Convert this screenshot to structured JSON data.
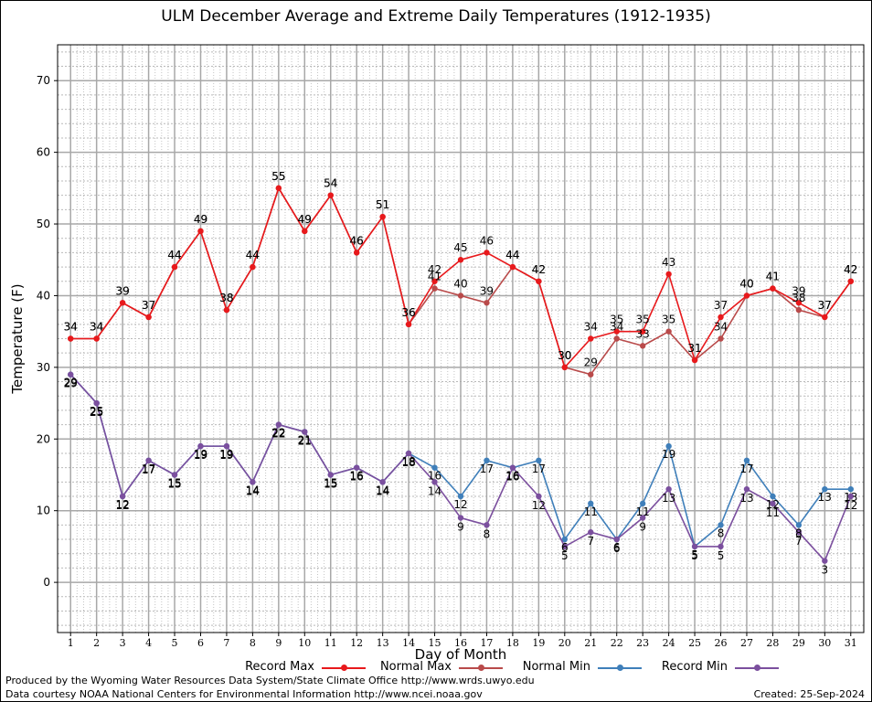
{
  "title": "ULM December Average and Extreme Daily Temperatures (1912-1935)",
  "footer": {
    "produced_by": "Produced by the Wyoming Water Resources Data System/State Climate Office http://www.wrds.uwyo.edu",
    "courtesy": "Data courtesy NOAA National Centers for Environmental Information http://www.ncei.noaa.gov",
    "created": "Created: 25-Sep-2024"
  },
  "chart_data": {
    "type": "line",
    "title": "ULM December Average and Extreme Daily Temperatures (1912-1935)",
    "xlabel": "Day of Month",
    "ylabel": "Temperature (F)",
    "xlim": [
      0.5,
      31.5
    ],
    "ylim": [
      -7,
      75
    ],
    "yticks": [
      0,
      10,
      20,
      30,
      40,
      50,
      60,
      70
    ],
    "x": [
      1,
      2,
      3,
      4,
      5,
      6,
      7,
      8,
      9,
      10,
      11,
      12,
      13,
      14,
      15,
      16,
      17,
      18,
      19,
      20,
      21,
      22,
      23,
      24,
      25,
      26,
      27,
      28,
      29,
      30,
      31
    ],
    "grid": true,
    "legend_position": "bottom",
    "series": [
      {
        "name": "Record Max",
        "color": "#e8191c",
        "values": [
          34,
          34,
          39,
          37,
          44,
          49,
          38,
          44,
          55,
          49,
          54,
          46,
          51,
          36,
          42,
          45,
          46,
          44,
          42,
          30,
          34,
          35,
          35,
          43,
          31,
          37,
          40,
          41,
          39,
          37,
          42
        ]
      },
      {
        "name": "Normal Max",
        "color": "#b94a4a",
        "values": [
          34,
          34,
          39,
          37,
          44,
          49,
          38,
          44,
          55,
          49,
          54,
          46,
          51,
          36,
          41,
          40,
          39,
          44,
          42,
          30,
          29,
          34,
          33,
          35,
          31,
          34,
          40,
          41,
          38,
          37,
          42
        ]
      },
      {
        "name": "Normal Min",
        "color": "#3f7fba",
        "values": [
          29,
          25,
          12,
          17,
          15,
          19,
          19,
          14,
          22,
          21,
          15,
          16,
          14,
          18,
          16,
          12,
          17,
          16,
          17,
          6,
          11,
          6,
          11,
          19,
          5,
          8,
          17,
          12,
          8,
          13,
          13
        ]
      },
      {
        "name": "Record Min",
        "color": "#7b4f9e",
        "values": [
          29,
          25,
          12,
          17,
          15,
          19,
          19,
          14,
          22,
          21,
          15,
          16,
          14,
          18,
          14,
          9,
          8,
          16,
          12,
          5,
          7,
          6,
          9,
          13,
          5,
          5,
          13,
          11,
          7,
          3,
          12
        ]
      }
    ]
  }
}
